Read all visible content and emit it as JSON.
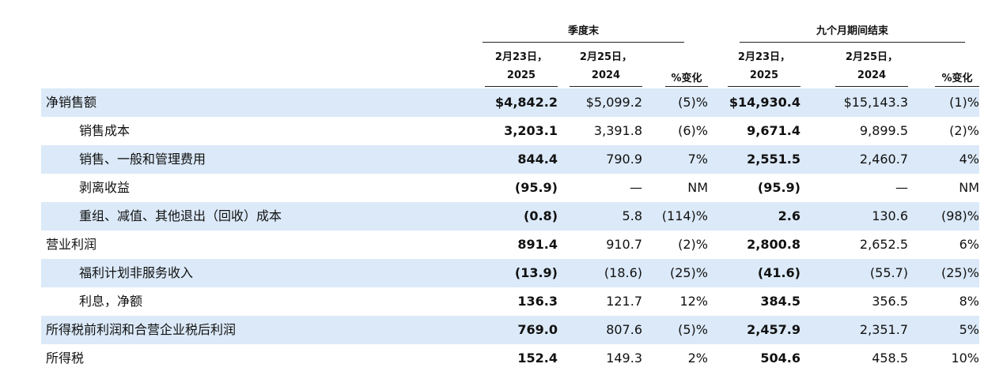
{
  "table": {
    "groups": [
      "季度末",
      "九个月期间结束"
    ],
    "columns": [
      [
        "2月23日，",
        "2025"
      ],
      [
        "2月25日，",
        "2024"
      ],
      [
        "%变化"
      ],
      [
        "2月23日，",
        "2025"
      ],
      [
        "2月25日，",
        "2024"
      ],
      [
        "%变化"
      ]
    ],
    "rows": [
      {
        "label": "净销售额",
        "indent": false,
        "cells": [
          "$4,842.2",
          "$5,099.2",
          "(5)%",
          "$14,930.4",
          "$15,143.3",
          "(1)%"
        ]
      },
      {
        "label": "销售成本",
        "indent": true,
        "cells": [
          "3,203.1",
          "3,391.8",
          "(6)%",
          "9,671.4",
          "9,899.5",
          "(2)%"
        ]
      },
      {
        "label": "销售、一般和管理费用",
        "indent": true,
        "cells": [
          "844.4",
          "790.9",
          "7%",
          "2,551.5",
          "2,460.7",
          "4%"
        ]
      },
      {
        "label": "剥离收益",
        "indent": true,
        "cells": [
          "(95.9)",
          "—",
          "NM",
          "(95.9)",
          "—",
          "NM"
        ]
      },
      {
        "label": "重组、减值、其他退出（回收）成本",
        "indent": true,
        "cells": [
          "(0.8)",
          "5.8",
          "(114)%",
          "2.6",
          "130.6",
          "(98)%"
        ]
      },
      {
        "label": "营业利润",
        "indent": false,
        "cells": [
          "891.4",
          "910.7",
          "(2)%",
          "2,800.8",
          "2,652.5",
          "6%"
        ]
      },
      {
        "label": "福利计划非服务收入",
        "indent": true,
        "cells": [
          "(13.9)",
          "(18.6)",
          "(25)%",
          "(41.6)",
          "(55.7)",
          "(25)%"
        ]
      },
      {
        "label": "利息，净额",
        "indent": true,
        "cells": [
          "136.3",
          "121.7",
          "12%",
          "384.5",
          "356.5",
          "8%"
        ]
      },
      {
        "label": "所得税前利润和合营企业税后利润",
        "indent": false,
        "cells": [
          "769.0",
          "807.6",
          "(5)%",
          "2,457.9",
          "2,351.7",
          "5%"
        ]
      },
      {
        "label": "所得税",
        "indent": false,
        "cells": [
          "152.4",
          "149.3",
          "2%",
          "504.6",
          "458.5",
          "10%"
        ]
      }
    ]
  }
}
